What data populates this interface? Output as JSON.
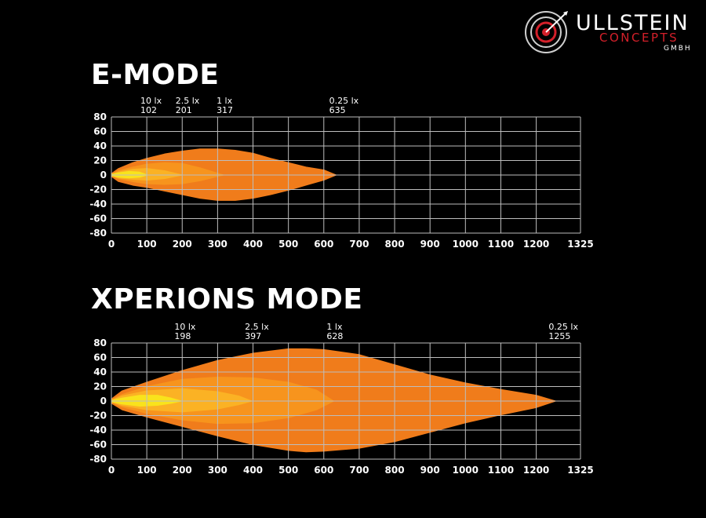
{
  "brand": {
    "name_main": "ULLSTEIN",
    "name_sub": "CONCEPTS",
    "name_legal": "GMBH",
    "accent_color": "#d4202a",
    "logo_icon": "target-icon"
  },
  "colors": {
    "background": "#000000",
    "grid": "#bdbdbd",
    "lux_0_25": "#f07c1b",
    "lux_1": "#f7941d",
    "lux_2_5": "#fbb224",
    "lux_10": "#f9e31c"
  },
  "chart_data": [
    {
      "type": "area",
      "title": "E-MODE",
      "xlim": [
        0,
        1325
      ],
      "ylim": [
        -80,
        80
      ],
      "x_ticks": [
        "0",
        "100",
        "200",
        "300",
        "400",
        "500",
        "600",
        "700",
        "800",
        "900",
        "1000",
        "1100",
        "1200",
        "1325"
      ],
      "x_tick_values": [
        0,
        100,
        200,
        300,
        400,
        500,
        600,
        700,
        800,
        900,
        1000,
        1100,
        1200,
        1325
      ],
      "y_ticks": [
        "80",
        "60",
        "40",
        "20",
        "0",
        "-20",
        "-40",
        "-60",
        "-80"
      ],
      "y_tick_values": [
        80,
        60,
        40,
        20,
        0,
        -20,
        -40,
        -60,
        -80
      ],
      "grid": true,
      "annotations": [
        {
          "lux": "10 lx",
          "distance": "102",
          "x": 102
        },
        {
          "lux": "2.5 lx",
          "distance": "201",
          "x": 201
        },
        {
          "lux": "1 lx",
          "distance": "317",
          "x": 317
        },
        {
          "lux": "0.25 lx",
          "distance": "635",
          "x": 635
        }
      ],
      "series": [
        {
          "name": "0.25 lx",
          "color": "#f07c1b",
          "x": [
            0,
            20,
            60,
            100,
            150,
            200,
            250,
            300,
            350,
            400,
            450,
            500,
            550,
            600,
            635
          ],
          "upper": [
            2,
            9,
            17,
            23,
            29,
            33,
            36,
            36,
            34,
            30,
            23,
            17,
            11,
            7,
            0
          ],
          "lower": [
            -2,
            -9,
            -14,
            -17,
            -22,
            -27,
            -32,
            -35,
            -35,
            -32,
            -27,
            -21,
            -14,
            -7,
            0
          ]
        },
        {
          "name": "1 lx",
          "color": "#f7941d",
          "x": [
            0,
            20,
            60,
            100,
            150,
            200,
            250,
            317
          ],
          "upper": [
            1,
            6,
            11,
            15,
            17,
            16,
            10,
            0
          ],
          "lower": [
            -1,
            -5,
            -9,
            -12,
            -13,
            -12,
            -8,
            0
          ]
        },
        {
          "name": "2.5 lx",
          "color": "#fbb224",
          "x": [
            0,
            20,
            60,
            100,
            150,
            201
          ],
          "upper": [
            1,
            4,
            8,
            9,
            6,
            0
          ],
          "lower": [
            -1,
            -4,
            -6,
            -7,
            -5,
            0
          ]
        },
        {
          "name": "10 lx",
          "color": "#f9e31c",
          "x": [
            0,
            20,
            50,
            80,
            102
          ],
          "upper": [
            1,
            3,
            5,
            4,
            0
          ],
          "lower": [
            -1,
            -3,
            -4,
            -3,
            0
          ]
        }
      ]
    },
    {
      "type": "area",
      "title": "XPERIONS MODE",
      "xlim": [
        0,
        1325
      ],
      "ylim": [
        -80,
        80
      ],
      "x_ticks": [
        "0",
        "100",
        "200",
        "300",
        "400",
        "500",
        "600",
        "700",
        "800",
        "900",
        "1000",
        "1100",
        "1200",
        "1325"
      ],
      "x_tick_values": [
        0,
        100,
        200,
        300,
        400,
        500,
        600,
        700,
        800,
        900,
        1000,
        1100,
        1200,
        1325
      ],
      "y_ticks": [
        "80",
        "60",
        "40",
        "20",
        "0",
        "-20",
        "-40",
        "-60",
        "-80"
      ],
      "y_tick_values": [
        80,
        60,
        40,
        20,
        0,
        -20,
        -40,
        -60,
        -80
      ],
      "grid": true,
      "annotations": [
        {
          "lux": "10 lx",
          "distance": "198",
          "x": 198
        },
        {
          "lux": "2.5 lx",
          "distance": "397",
          "x": 397
        },
        {
          "lux": "1 lx",
          "distance": "628",
          "x": 628
        },
        {
          "lux": "0.25 lx",
          "distance": "1255",
          "x": 1255
        }
      ],
      "series": [
        {
          "name": "0.25 lx",
          "color": "#f07c1b",
          "x": [
            0,
            30,
            100,
            200,
            300,
            400,
            500,
            550,
            600,
            700,
            800,
            900,
            1000,
            1100,
            1200,
            1255
          ],
          "upper": [
            3,
            14,
            26,
            42,
            56,
            66,
            72,
            72,
            71,
            64,
            50,
            36,
            25,
            16,
            8,
            0
          ],
          "lower": [
            -3,
            -12,
            -22,
            -35,
            -48,
            -60,
            -68,
            -70,
            -69,
            -65,
            -56,
            -43,
            -30,
            -19,
            -9,
            0
          ]
        },
        {
          "name": "1 lx",
          "color": "#f7941d",
          "x": [
            0,
            30,
            100,
            200,
            300,
            400,
            500,
            580,
            628
          ],
          "upper": [
            2,
            9,
            20,
            30,
            33,
            32,
            26,
            15,
            0
          ],
          "lower": [
            -2,
            -8,
            -17,
            -26,
            -31,
            -30,
            -23,
            -12,
            0
          ]
        },
        {
          "name": "2.5 lx",
          "color": "#fbb224",
          "x": [
            0,
            30,
            100,
            200,
            300,
            360,
            397
          ],
          "upper": [
            1,
            7,
            14,
            17,
            13,
            7,
            0
          ],
          "lower": [
            -1,
            -6,
            -12,
            -15,
            -11,
            -5,
            0
          ]
        },
        {
          "name": "10 lx",
          "color": "#f9e31c",
          "x": [
            0,
            30,
            80,
            130,
            170,
            198
          ],
          "upper": [
            1,
            4,
            8,
            8,
            4,
            0
          ],
          "lower": [
            -1,
            -4,
            -7,
            -6,
            -3,
            0
          ]
        }
      ]
    }
  ]
}
